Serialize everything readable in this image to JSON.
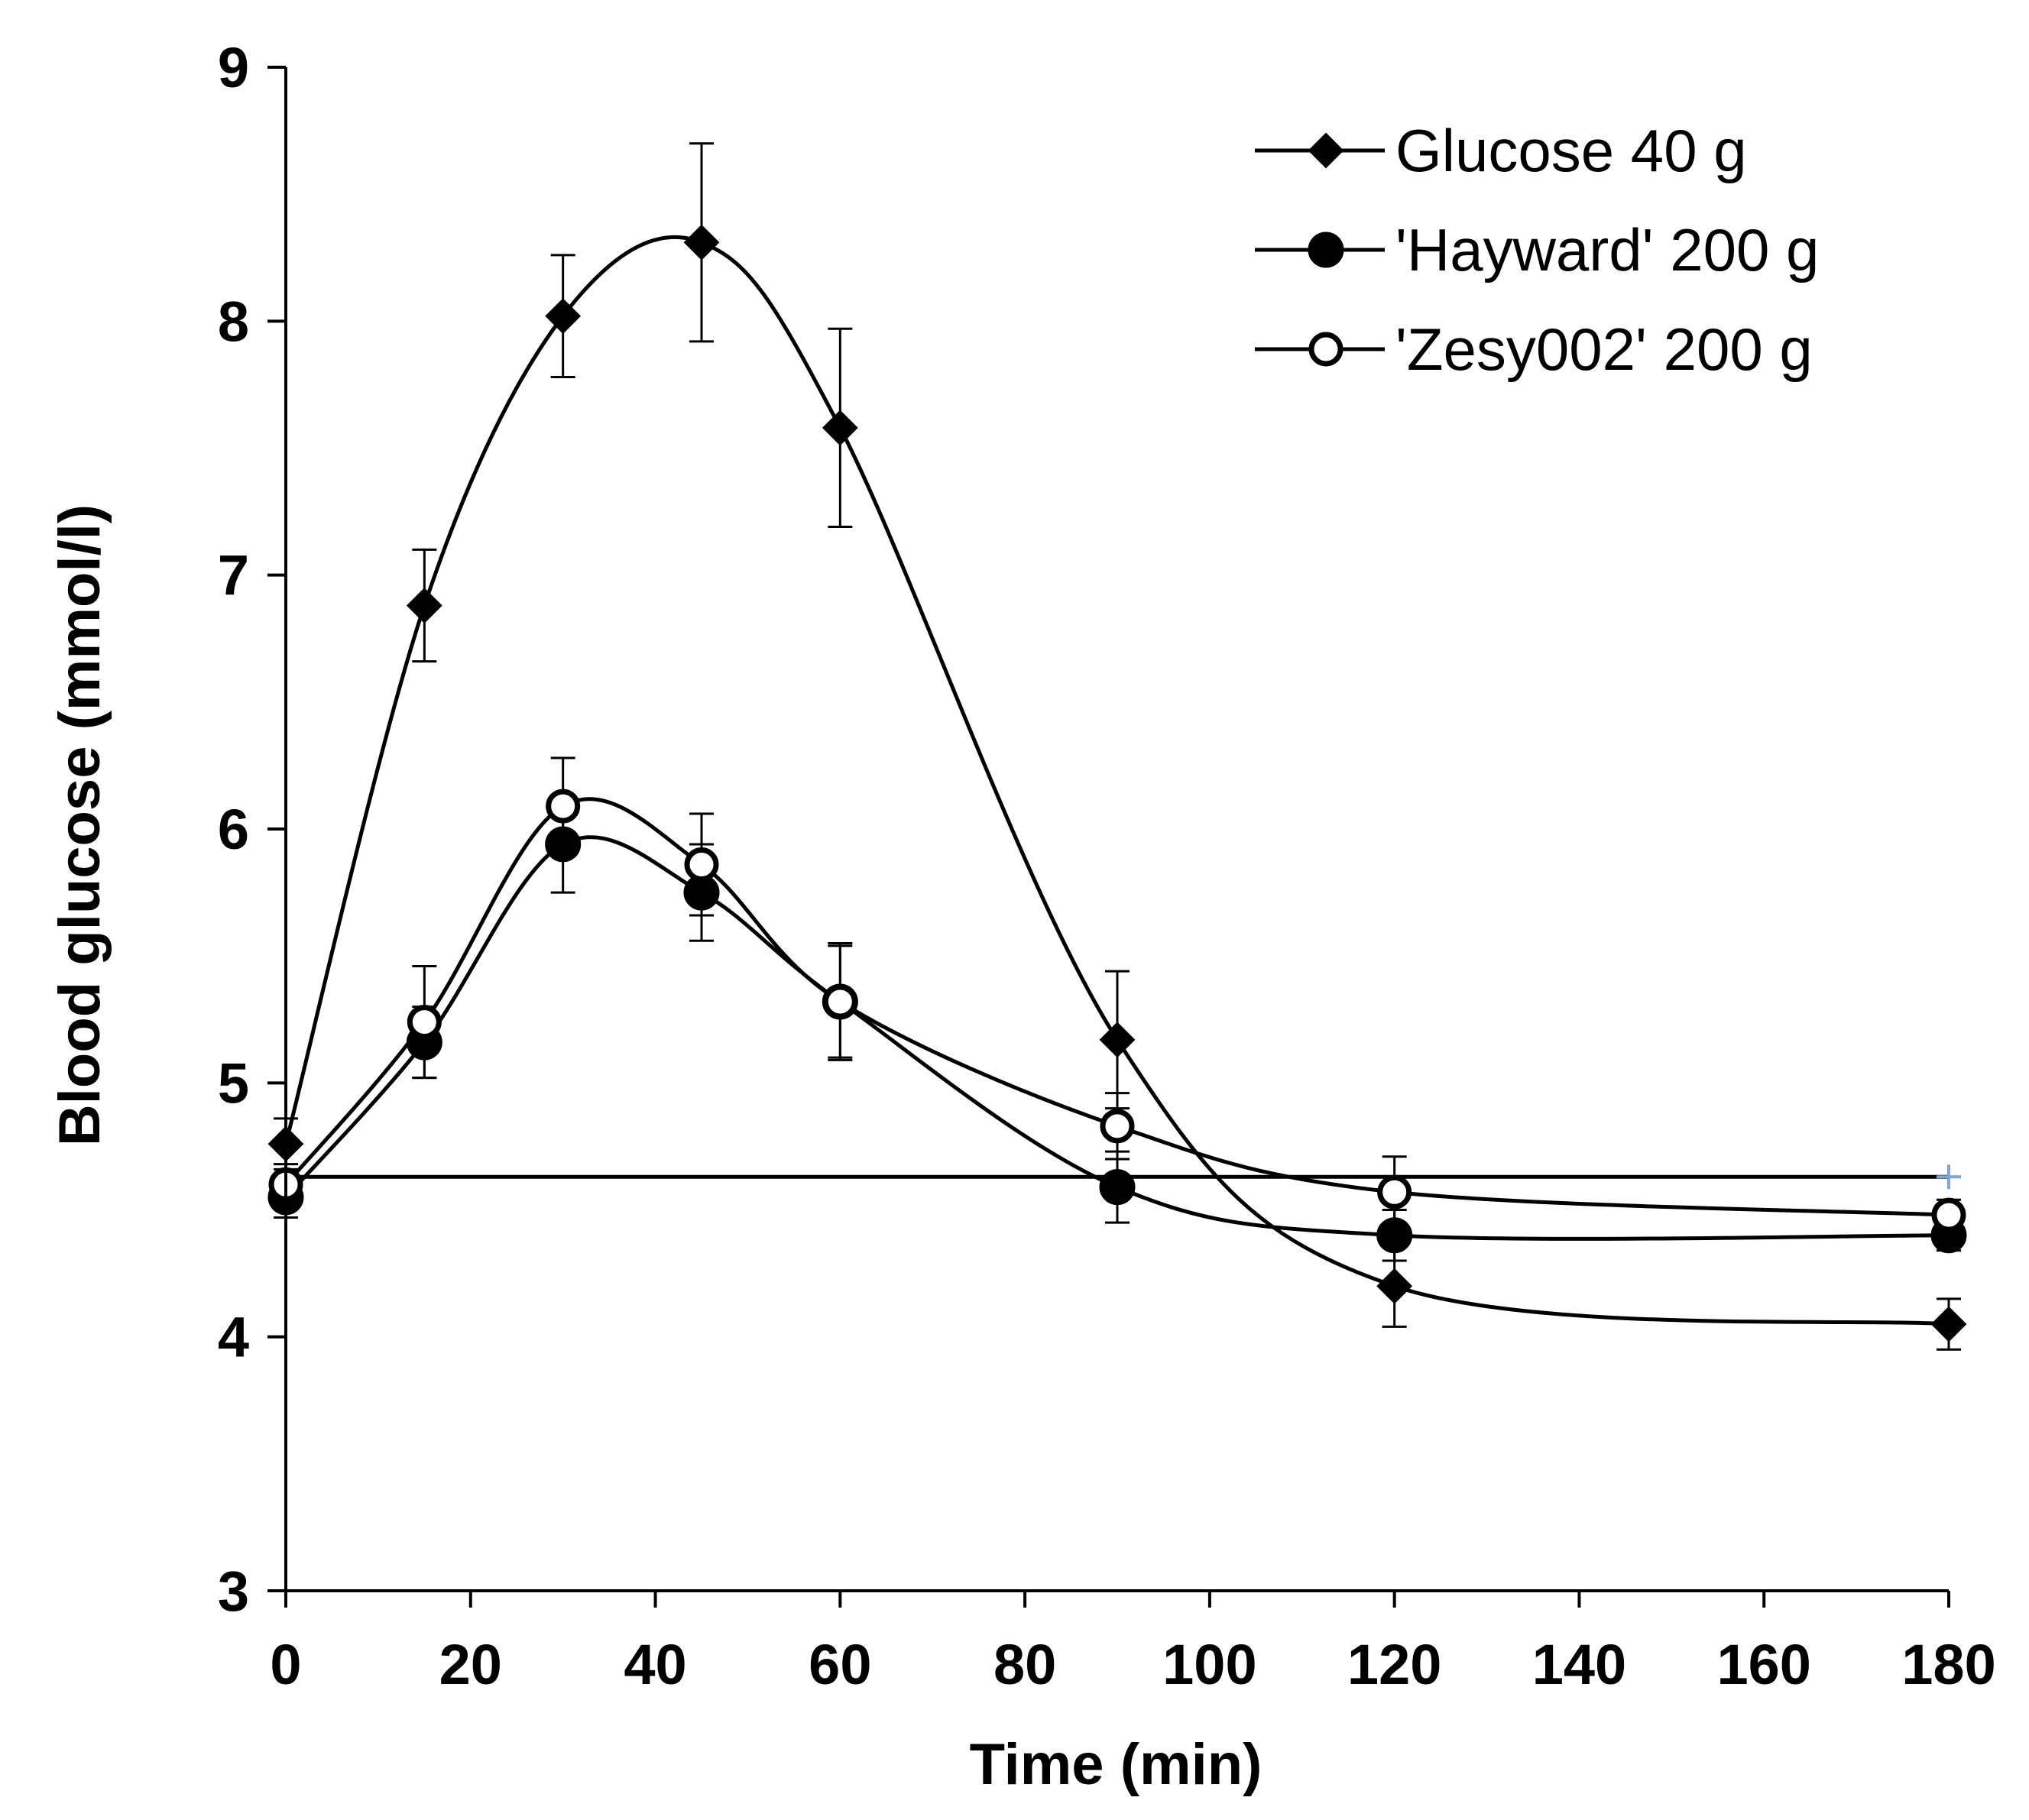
{
  "chart_data": {
    "type": "line",
    "title": "",
    "xlabel": "Time (min)",
    "ylabel": "Blood glucose (mmol/l)",
    "xlim": [
      0,
      180
    ],
    "ylim": [
      3,
      9
    ],
    "xticks": [
      0,
      20,
      40,
      60,
      80,
      100,
      120,
      140,
      160,
      180
    ],
    "yticks": [
      3,
      4,
      5,
      6,
      7,
      8,
      9
    ],
    "x": [
      0,
      15,
      30,
      45,
      60,
      90,
      120,
      180
    ],
    "grid": false,
    "legend_position": "top-right",
    "reference_line": {
      "y": 4.63,
      "x_start": 0,
      "x_end": 180,
      "end_marker": "+",
      "marker_color": "#7fa6d6"
    },
    "series": [
      {
        "name": "Glucose 40 g",
        "marker": "diamond",
        "values": [
          4.76,
          6.88,
          8.02,
          8.31,
          7.58,
          5.17,
          4.2,
          4.05
        ],
        "errors": [
          0.1,
          0.22,
          0.24,
          0.39,
          0.39,
          0.27,
          0.16,
          0.1
        ]
      },
      {
        "name": "'Hayward' 200 g",
        "marker": "filled-circle",
        "values": [
          4.55,
          5.16,
          5.94,
          5.75,
          5.32,
          4.59,
          4.4,
          4.4
        ],
        "errors": [
          0.08,
          0.14,
          0.19,
          0.19,
          0.22,
          0.14,
          0.1,
          0.06
        ]
      },
      {
        "name": "'Zesy002' 200 g",
        "marker": "open-circle",
        "values": [
          4.6,
          5.24,
          6.09,
          5.86,
          5.32,
          4.83,
          4.57,
          4.48
        ],
        "errors": [
          0.08,
          0.22,
          0.19,
          0.2,
          0.23,
          0.13,
          0.14,
          0.06
        ]
      }
    ]
  }
}
